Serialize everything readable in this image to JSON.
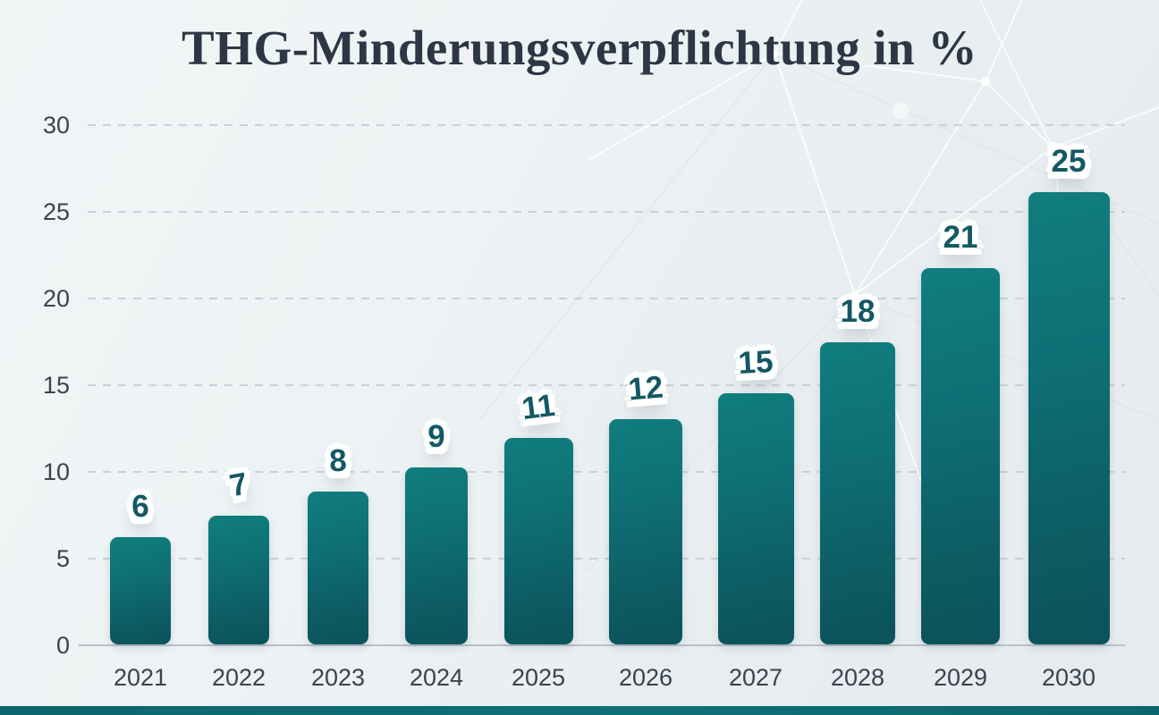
{
  "chart_data": {
    "type": "bar",
    "title": "THG-Minderungsverpflichtung in %",
    "categories": [
      "2021",
      "2022",
      "2023",
      "2024",
      "2025",
      "2026",
      "2027",
      "2028",
      "2029",
      "2030"
    ],
    "values": [
      6,
      7,
      8,
      9,
      11,
      12,
      15,
      18,
      21,
      25
    ],
    "value_labels": [
      "6",
      "7",
      "8",
      "9",
      "11",
      "12",
      "15",
      "18",
      "21",
      "25"
    ],
    "xlabel": "",
    "ylabel": "",
    "ylim": [
      0,
      30
    ],
    "yticks": [
      0,
      5,
      10,
      15,
      20,
      25,
      30
    ],
    "grid": "horizontal-dashed",
    "legend": "none",
    "colors": {
      "bar_top": "#107e7f",
      "bar_bottom": "#0c525b",
      "value_label_text": "#135863",
      "value_label_halo": "#ffffff",
      "axis_text": "#3a434f",
      "gridline": "#c3cad1",
      "axis_line": "#b9c0c7",
      "title_text": "#2c3644",
      "background": "#edf2f4",
      "footer_bar": "#0f6a72"
    },
    "layout": {
      "plot_left": 98,
      "plot_right": 1258,
      "baseline_y": 721,
      "top_y": 139,
      "bar_centers": [
        157,
        267,
        378,
        488,
        602,
        722,
        845,
        959,
        1074,
        1195
      ],
      "bar_widths": [
        68,
        68,
        68,
        70,
        77,
        82,
        85,
        84,
        88,
        91
      ],
      "display_values": [
        6.2,
        7.4,
        8.8,
        10.2,
        11.9,
        13.0,
        14.5,
        17.4,
        21.7,
        26.1
      ],
      "label_rotations_deg": [
        -2,
        -11,
        -2,
        0,
        -7,
        -5,
        -3,
        0,
        0,
        0
      ],
      "x_label_y": 742,
      "y_label_right_edge": 78
    }
  }
}
